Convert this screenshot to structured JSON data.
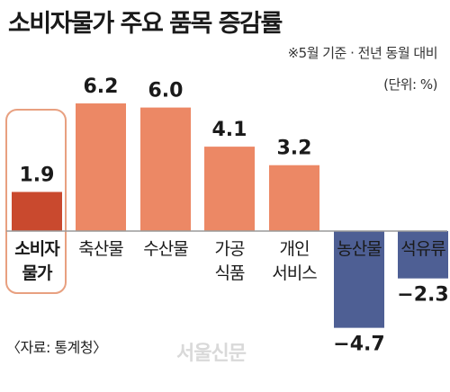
{
  "title": "소비자물가 주요 품목 증감률",
  "subtitle": "※5월 기준 · 전년 동월 대비",
  "unit": "(단위: %)",
  "source": "〈자료: 통계청〉",
  "watermark": "서울신문",
  "colors": {
    "highlight": "#c9492e",
    "positive": "#ec8865",
    "negative": "#4e5f94",
    "highlight_box": "#e8a080",
    "baseline": "#9a9a9a"
  },
  "chart_data": {
    "type": "bar",
    "title": "소비자물가 주요 품목 증감률",
    "unit": "%",
    "categories": [
      [
        "소비자",
        "물가"
      ],
      [
        "축산물"
      ],
      [
        "수산물"
      ],
      [
        "가공",
        "식품"
      ],
      [
        "개인",
        "서비스"
      ],
      [
        "농산물"
      ],
      [
        "석유류"
      ]
    ],
    "values": [
      1.9,
      6.2,
      6.0,
      4.1,
      3.2,
      -4.7,
      -2.3
    ],
    "value_labels": [
      "1.9",
      "6.2",
      "6.0",
      "4.1",
      "3.2",
      "−4.7",
      "−2.3"
    ],
    "highlighted_category": 0,
    "grid": false,
    "legend": "none"
  }
}
